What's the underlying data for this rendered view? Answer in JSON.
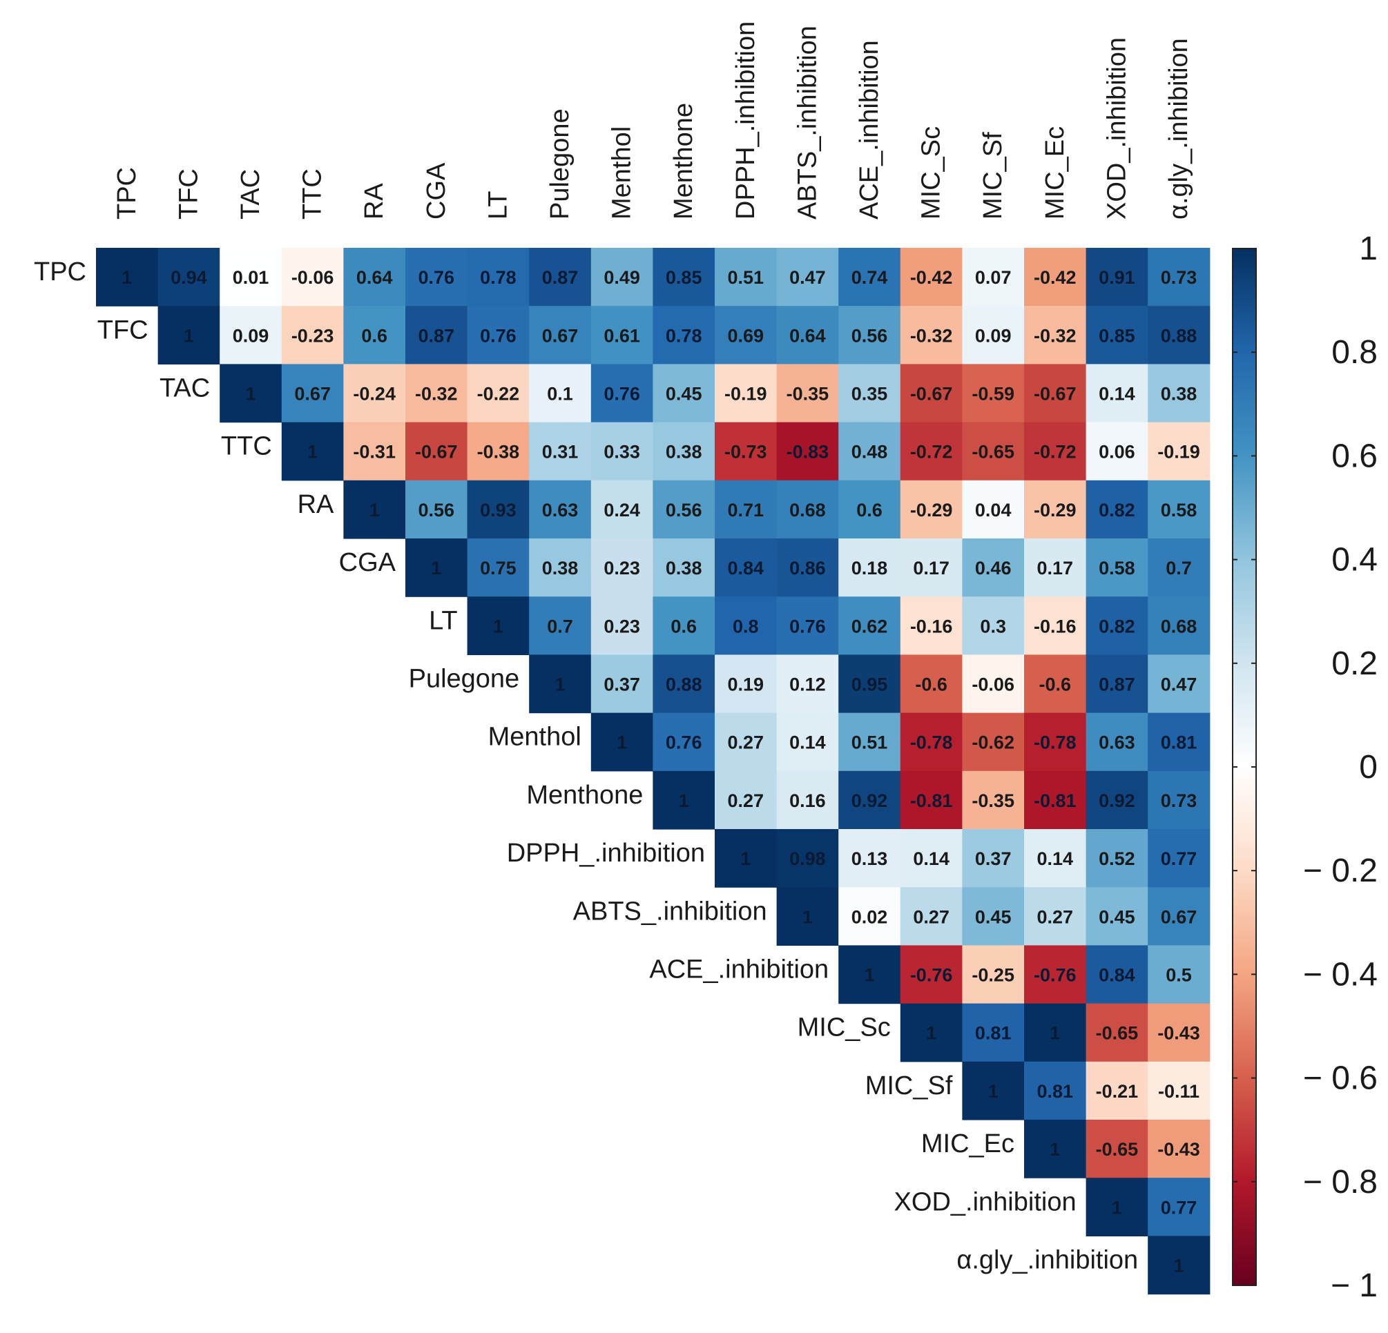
{
  "chart_data": {
    "type": "heatmap",
    "subtype": "correlation matrix (upper triangle)",
    "variables": [
      "TPC",
      "TFC",
      "TAC",
      "TTC",
      "RA",
      "CGA",
      "LT",
      "Pulegone",
      "Menthol",
      "Menthone",
      "DPPH_.inhibition",
      "ABTS_.inhibition",
      "ACE_.inhibition",
      "MIC_Sc",
      "MIC_Sf",
      "MIC_Ec",
      "XOD_.inhibition",
      "α.gly_.inhibition"
    ],
    "values": [
      [
        1,
        0.94,
        0.01,
        -0.06,
        0.64,
        0.76,
        0.78,
        0.87,
        0.49,
        0.85,
        0.51,
        0.47,
        0.74,
        -0.42,
        0.07,
        -0.42,
        0.91,
        0.73
      ],
      [
        null,
        1,
        0.09,
        -0.23,
        0.6,
        0.87,
        0.76,
        0.67,
        0.61,
        0.78,
        0.69,
        0.64,
        0.56,
        -0.32,
        0.09,
        -0.32,
        0.85,
        0.88
      ],
      [
        null,
        null,
        1,
        0.67,
        -0.24,
        -0.32,
        -0.22,
        0.1,
        0.76,
        0.45,
        -0.19,
        -0.35,
        0.35,
        -0.67,
        -0.59,
        -0.67,
        0.14,
        0.38
      ],
      [
        null,
        null,
        null,
        1,
        -0.31,
        -0.67,
        -0.38,
        0.31,
        0.33,
        0.38,
        -0.73,
        -0.83,
        0.48,
        -0.72,
        -0.65,
        -0.72,
        0.06,
        -0.19
      ],
      [
        null,
        null,
        null,
        null,
        1,
        0.56,
        0.93,
        0.63,
        0.24,
        0.56,
        0.71,
        0.68,
        0.6,
        -0.29,
        0.04,
        -0.29,
        0.82,
        0.58
      ],
      [
        null,
        null,
        null,
        null,
        null,
        1,
        0.75,
        0.38,
        0.23,
        0.38,
        0.84,
        0.86,
        0.18,
        0.17,
        0.46,
        0.17,
        0.58,
        0.7
      ],
      [
        null,
        null,
        null,
        null,
        null,
        null,
        1,
        0.7,
        0.23,
        0.6,
        0.8,
        0.76,
        0.62,
        -0.16,
        0.3,
        -0.16,
        0.82,
        0.68
      ],
      [
        null,
        null,
        null,
        null,
        null,
        null,
        null,
        1,
        0.37,
        0.88,
        0.19,
        0.12,
        0.95,
        -0.6,
        -0.06,
        -0.6,
        0.87,
        0.47
      ],
      [
        null,
        null,
        null,
        null,
        null,
        null,
        null,
        null,
        1,
        0.76,
        0.27,
        0.14,
        0.51,
        -0.78,
        -0.62,
        -0.78,
        0.63,
        0.81
      ],
      [
        null,
        null,
        null,
        null,
        null,
        null,
        null,
        null,
        null,
        1,
        0.27,
        0.16,
        0.92,
        -0.81,
        -0.35,
        -0.81,
        0.92,
        0.73
      ],
      [
        null,
        null,
        null,
        null,
        null,
        null,
        null,
        null,
        null,
        null,
        1,
        0.98,
        0.13,
        0.14,
        0.37,
        0.14,
        0.52,
        0.77
      ],
      [
        null,
        null,
        null,
        null,
        null,
        null,
        null,
        null,
        null,
        null,
        null,
        1,
        0.02,
        0.27,
        0.45,
        0.27,
        0.45,
        0.67
      ],
      [
        null,
        null,
        null,
        null,
        null,
        null,
        null,
        null,
        null,
        null,
        null,
        null,
        1,
        -0.76,
        -0.25,
        -0.76,
        0.84,
        0.5
      ],
      [
        null,
        null,
        null,
        null,
        null,
        null,
        null,
        null,
        null,
        null,
        null,
        null,
        null,
        1,
        0.81,
        1,
        -0.65,
        -0.43
      ],
      [
        null,
        null,
        null,
        null,
        null,
        null,
        null,
        null,
        null,
        null,
        null,
        null,
        null,
        null,
        1,
        0.81,
        -0.21,
        -0.11
      ],
      [
        null,
        null,
        null,
        null,
        null,
        null,
        null,
        null,
        null,
        null,
        null,
        null,
        null,
        null,
        null,
        1,
        -0.65,
        -0.43
      ],
      [
        null,
        null,
        null,
        null,
        null,
        null,
        null,
        null,
        null,
        null,
        null,
        null,
        null,
        null,
        null,
        null,
        1,
        0.77
      ],
      [
        null,
        null,
        null,
        null,
        null,
        null,
        null,
        null,
        null,
        null,
        null,
        null,
        null,
        null,
        null,
        null,
        null,
        1
      ]
    ],
    "colorbar": {
      "range": [
        -1,
        1
      ],
      "ticks": [
        1,
        0.8,
        0.6,
        0.4,
        0.2,
        0,
        -0.2,
        -0.4,
        -0.6,
        -0.8,
        -1
      ],
      "tick_labels": [
        "1",
        "0.8",
        "0.6",
        "0.4",
        "0.2",
        "0",
        "− 0.2",
        "− 0.4",
        "− 0.6",
        "− 0.8",
        "− 1"
      ],
      "placement": "right"
    },
    "colors": {
      "scale": [
        "#67001F",
        "#B2182B",
        "#D6604D",
        "#F4A582",
        "#FDDBC7",
        "#FFFFFF",
        "#D1E5F0",
        "#92C5DE",
        "#4393C3",
        "#2166AC",
        "#053061"
      ],
      "cell_text": "#1a1a1a",
      "cell_text_on_dark": "#0b1a33"
    }
  }
}
